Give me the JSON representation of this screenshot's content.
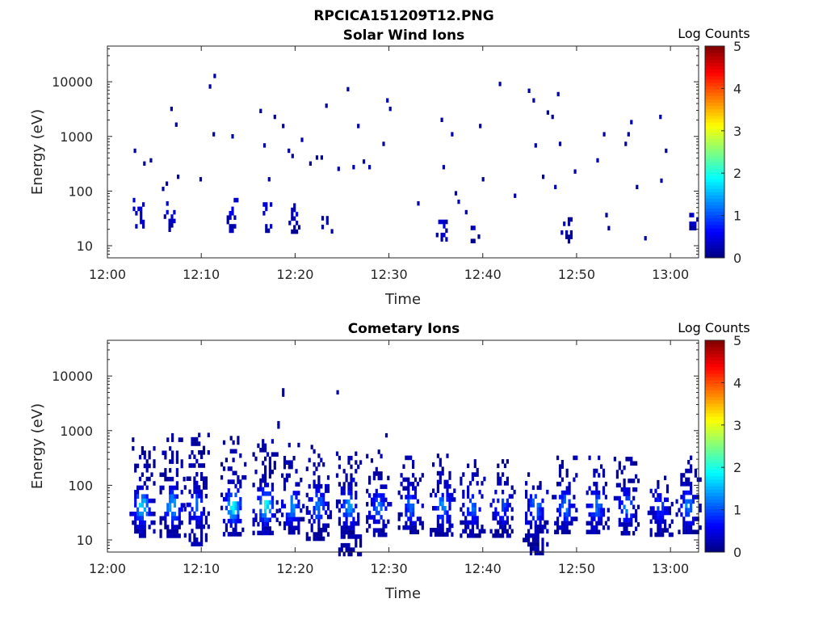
{
  "figure_title": "RPCICA151209T12.PNG",
  "colors": {
    "axes": "#262626",
    "background": "#ffffff",
    "colormap": "jet"
  },
  "chart_data": [
    {
      "type": "heatmap",
      "title": "Solar Wind Ions",
      "xlabel": "Time",
      "ylabel": "Energy (eV)",
      "x_tick_labels": [
        "12:00",
        "12:10",
        "12:20",
        "12:30",
        "12:40",
        "12:50",
        "13:00"
      ],
      "x_range_minutes_after_noon": [
        0,
        63
      ],
      "y_scale": "log",
      "y_tick_labels": [
        "10",
        "100",
        "1000",
        "10000"
      ],
      "y_tick_values": [
        10,
        100,
        1000,
        10000
      ],
      "ylim": [
        6,
        45000
      ],
      "colorbar": {
        "label": "Log Counts",
        "ticks": [
          "0",
          "1",
          "2",
          "3",
          "4",
          "5"
        ],
        "range": [
          0,
          5
        ]
      },
      "bursts": [
        {
          "t": 3.2,
          "e_min": 18,
          "e_max": 75,
          "intensity": 0.25
        },
        {
          "t": 6.5,
          "e_min": 18,
          "e_max": 65,
          "intensity": 0.2
        },
        {
          "t": 13.2,
          "e_min": 18,
          "e_max": 75,
          "intensity": 0.25
        },
        {
          "t": 16.8,
          "e_min": 18,
          "e_max": 75,
          "intensity": 0.25
        },
        {
          "t": 19.8,
          "e_min": 18,
          "e_max": 60,
          "intensity": 0.2
        },
        {
          "t": 23.3,
          "e_min": 12,
          "e_max": 35,
          "intensity": 0.15
        },
        {
          "t": 35.5,
          "e_min": 12,
          "e_max": 30,
          "intensity": 0.15
        },
        {
          "t": 39.2,
          "e_min": 12,
          "e_max": 28,
          "intensity": 0.15
        },
        {
          "t": 48.8,
          "e_min": 12,
          "e_max": 40,
          "intensity": 0.15
        },
        {
          "t": 52.8,
          "e_min": 22,
          "e_max": 40,
          "intensity": 0.15
        },
        {
          "t": 62.5,
          "e_min": 22,
          "e_max": 40,
          "intensity": 0.15
        }
      ],
      "scatter_points": [
        {
          "t": 2.8,
          "e": 600
        },
        {
          "t": 3.8,
          "e": 350
        },
        {
          "t": 4.5,
          "e": 400
        },
        {
          "t": 5.8,
          "e": 120
        },
        {
          "t": 6.2,
          "e": 150
        },
        {
          "t": 6.7,
          "e": 3500
        },
        {
          "t": 7.2,
          "e": 1800
        },
        {
          "t": 7.4,
          "e": 200
        },
        {
          "t": 9.8,
          "e": 180
        },
        {
          "t": 10.8,
          "e": 9000
        },
        {
          "t": 11.3,
          "e": 14000
        },
        {
          "t": 11.2,
          "e": 1200
        },
        {
          "t": 13.2,
          "e": 1100
        },
        {
          "t": 16.2,
          "e": 3200
        },
        {
          "t": 16.6,
          "e": 750
        },
        {
          "t": 17.7,
          "e": 2500
        },
        {
          "t": 18.6,
          "e": 1700
        },
        {
          "t": 17.1,
          "e": 180
        },
        {
          "t": 19.2,
          "e": 600
        },
        {
          "t": 19.6,
          "e": 480
        },
        {
          "t": 20.6,
          "e": 950
        },
        {
          "t": 21.5,
          "e": 350
        },
        {
          "t": 22.2,
          "e": 450
        },
        {
          "t": 22.7,
          "e": 450
        },
        {
          "t": 23.2,
          "e": 4000
        },
        {
          "t": 24.5,
          "e": 280
        },
        {
          "t": 25.5,
          "e": 8000
        },
        {
          "t": 26.1,
          "e": 300
        },
        {
          "t": 26.6,
          "e": 1700
        },
        {
          "t": 27.2,
          "e": 380
        },
        {
          "t": 29.7,
          "e": 5000
        },
        {
          "t": 30.0,
          "e": 3500
        },
        {
          "t": 27.8,
          "e": 300
        },
        {
          "t": 29.3,
          "e": 800
        },
        {
          "t": 33.0,
          "e": 65
        },
        {
          "t": 35.5,
          "e": 2200
        },
        {
          "t": 35.7,
          "e": 300
        },
        {
          "t": 36.6,
          "e": 1200
        },
        {
          "t": 37.0,
          "e": 100
        },
        {
          "t": 37.3,
          "e": 70
        },
        {
          "t": 38.1,
          "e": 45
        },
        {
          "t": 39.6,
          "e": 1700
        },
        {
          "t": 39.9,
          "e": 180
        },
        {
          "t": 41.7,
          "e": 10000
        },
        {
          "t": 43.3,
          "e": 90
        },
        {
          "t": 44.8,
          "e": 7500
        },
        {
          "t": 45.3,
          "e": 5000
        },
        {
          "t": 45.5,
          "e": 750
        },
        {
          "t": 46.3,
          "e": 200
        },
        {
          "t": 46.8,
          "e": 3000
        },
        {
          "t": 47.3,
          "e": 2500
        },
        {
          "t": 47.9,
          "e": 6500
        },
        {
          "t": 48.1,
          "e": 800
        },
        {
          "t": 47.6,
          "e": 130
        },
        {
          "t": 49.7,
          "e": 250
        },
        {
          "t": 52.1,
          "e": 400
        },
        {
          "t": 52.8,
          "e": 1200
        },
        {
          "t": 55.1,
          "e": 800
        },
        {
          "t": 55.4,
          "e": 1200
        },
        {
          "t": 55.7,
          "e": 2000
        },
        {
          "t": 56.3,
          "e": 130
        },
        {
          "t": 58.8,
          "e": 2500
        },
        {
          "t": 58.9,
          "e": 170
        },
        {
          "t": 59.4,
          "e": 600
        },
        {
          "t": 57.2,
          "e": 15
        }
      ]
    },
    {
      "type": "heatmap",
      "title": "Cometary Ions",
      "xlabel": "Time",
      "ylabel": "Energy (eV)",
      "x_tick_labels": [
        "12:00",
        "12:10",
        "12:20",
        "12:30",
        "12:40",
        "12:50",
        "13:00"
      ],
      "x_range_minutes_after_noon": [
        0,
        63
      ],
      "y_scale": "log",
      "y_tick_labels": [
        "10",
        "100",
        "1000",
        "10000"
      ],
      "y_tick_values": [
        10,
        100,
        1000,
        10000
      ],
      "ylim": [
        6,
        45000
      ],
      "colorbar": {
        "label": "Log Counts",
        "ticks": [
          "0",
          "1",
          "2",
          "3",
          "4",
          "5"
        ],
        "range": [
          0,
          5
        ]
      },
      "bursts": [
        {
          "t": 3.6,
          "e_min": 13,
          "e_max": 750,
          "intensity": 1.6
        },
        {
          "t": 6.8,
          "e_min": 13,
          "e_max": 900,
          "intensity": 1.4
        },
        {
          "t": 9.4,
          "e_min": 8,
          "e_max": 1100,
          "intensity": 1.0
        },
        {
          "t": 13.3,
          "e_min": 13,
          "e_max": 800,
          "intensity": 1.7
        },
        {
          "t": 16.7,
          "e_min": 13,
          "e_max": 700,
          "intensity": 1.8
        },
        {
          "t": 19.5,
          "e_min": 13,
          "e_max": 600,
          "intensity": 1.2
        },
        {
          "t": 22.4,
          "e_min": 10,
          "e_max": 550,
          "intensity": 1.1
        },
        {
          "t": 25.6,
          "e_min": 6,
          "e_max": 500,
          "intensity": 1.2
        },
        {
          "t": 28.8,
          "e_min": 13,
          "e_max": 450,
          "intensity": 1.0
        },
        {
          "t": 32.2,
          "e_min": 13,
          "e_max": 350,
          "intensity": 0.9
        },
        {
          "t": 35.6,
          "e_min": 13,
          "e_max": 380,
          "intensity": 1.1
        },
        {
          "t": 38.8,
          "e_min": 13,
          "e_max": 300,
          "intensity": 0.9
        },
        {
          "t": 42.0,
          "e_min": 13,
          "e_max": 300,
          "intensity": 0.8
        },
        {
          "t": 45.5,
          "e_min": 6,
          "e_max": 250,
          "intensity": 1.1
        },
        {
          "t": 48.6,
          "e_min": 13,
          "e_max": 350,
          "intensity": 1.1
        },
        {
          "t": 52.0,
          "e_min": 13,
          "e_max": 350,
          "intensity": 1.0
        },
        {
          "t": 55.2,
          "e_min": 13,
          "e_max": 400,
          "intensity": 1.0
        },
        {
          "t": 58.8,
          "e_min": 13,
          "e_max": 150,
          "intensity": 0.7
        },
        {
          "t": 61.8,
          "e_min": 13,
          "e_max": 350,
          "intensity": 1.1
        }
      ],
      "scatter_points": [
        {
          "t": 18.6,
          "e": 6000
        },
        {
          "t": 18.6,
          "e": 5000
        },
        {
          "t": 24.4,
          "e": 5500
        },
        {
          "t": 18.1,
          "e": 1500
        },
        {
          "t": 18.1,
          "e": 1300
        },
        {
          "t": 29.6,
          "e": 900
        }
      ]
    }
  ]
}
